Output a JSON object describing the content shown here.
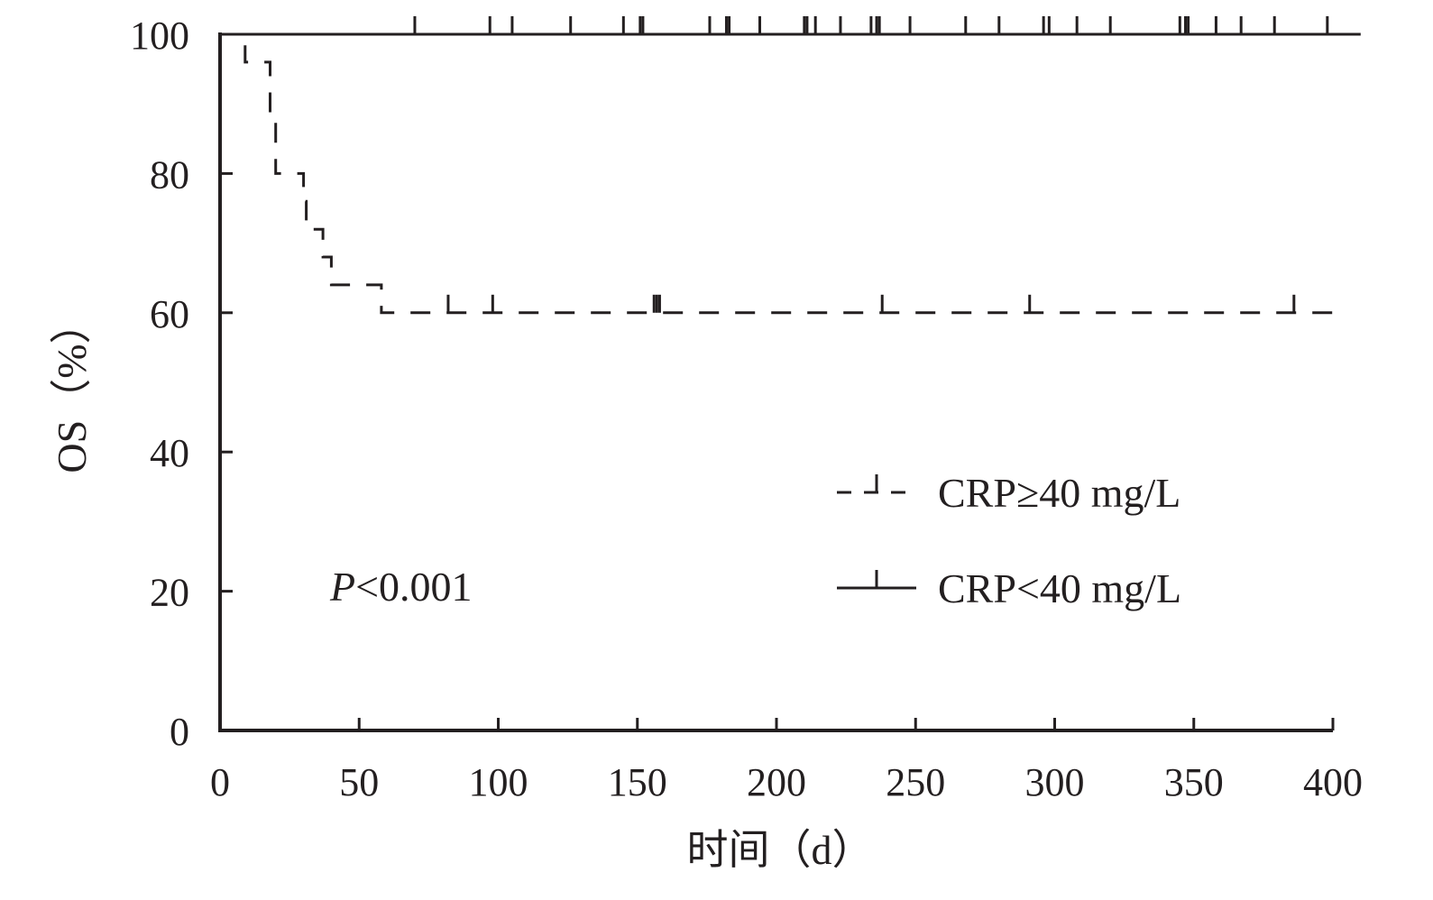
{
  "chart_data": {
    "type": "line",
    "subtype": "kaplan-meier",
    "title": "",
    "xlabel": "时间（d）",
    "ylabel": "OS（%）",
    "xlim": [
      0,
      400
    ],
    "ylim": [
      0,
      100
    ],
    "xticks": [
      0,
      50,
      100,
      150,
      200,
      250,
      300,
      350,
      400
    ],
    "yticks": [
      0,
      20,
      40,
      60,
      80,
      100
    ],
    "grid": false,
    "legend_position": "right",
    "annotation": {
      "text_italic": "P",
      "text_rest": "<0.001"
    },
    "colors": {
      "line": "#231f20",
      "background": "#ffffff"
    },
    "series": [
      {
        "name": "CRP≥40 mg/L",
        "style": "dashed",
        "steps": [
          [
            0,
            100
          ],
          [
            9,
            96
          ],
          [
            18,
            88
          ],
          [
            20,
            80
          ],
          [
            30,
            76
          ],
          [
            31,
            72
          ],
          [
            37,
            68
          ],
          [
            40,
            64
          ],
          [
            58,
            60
          ],
          [
            400,
            60
          ]
        ],
        "censored": [
          82,
          98,
          156,
          157,
          158,
          238,
          291,
          386
        ]
      },
      {
        "name": "CRP<40 mg/L",
        "style": "solid",
        "steps": [
          [
            0,
            100
          ],
          [
            410,
            100
          ]
        ],
        "censored": [
          70,
          97,
          105,
          126,
          145,
          151,
          152,
          176,
          182,
          183,
          194,
          210,
          211,
          214,
          223,
          234,
          236,
          237,
          248,
          268,
          280,
          296,
          298,
          308,
          320,
          345,
          347,
          348,
          358,
          367,
          379,
          398
        ]
      }
    ]
  }
}
